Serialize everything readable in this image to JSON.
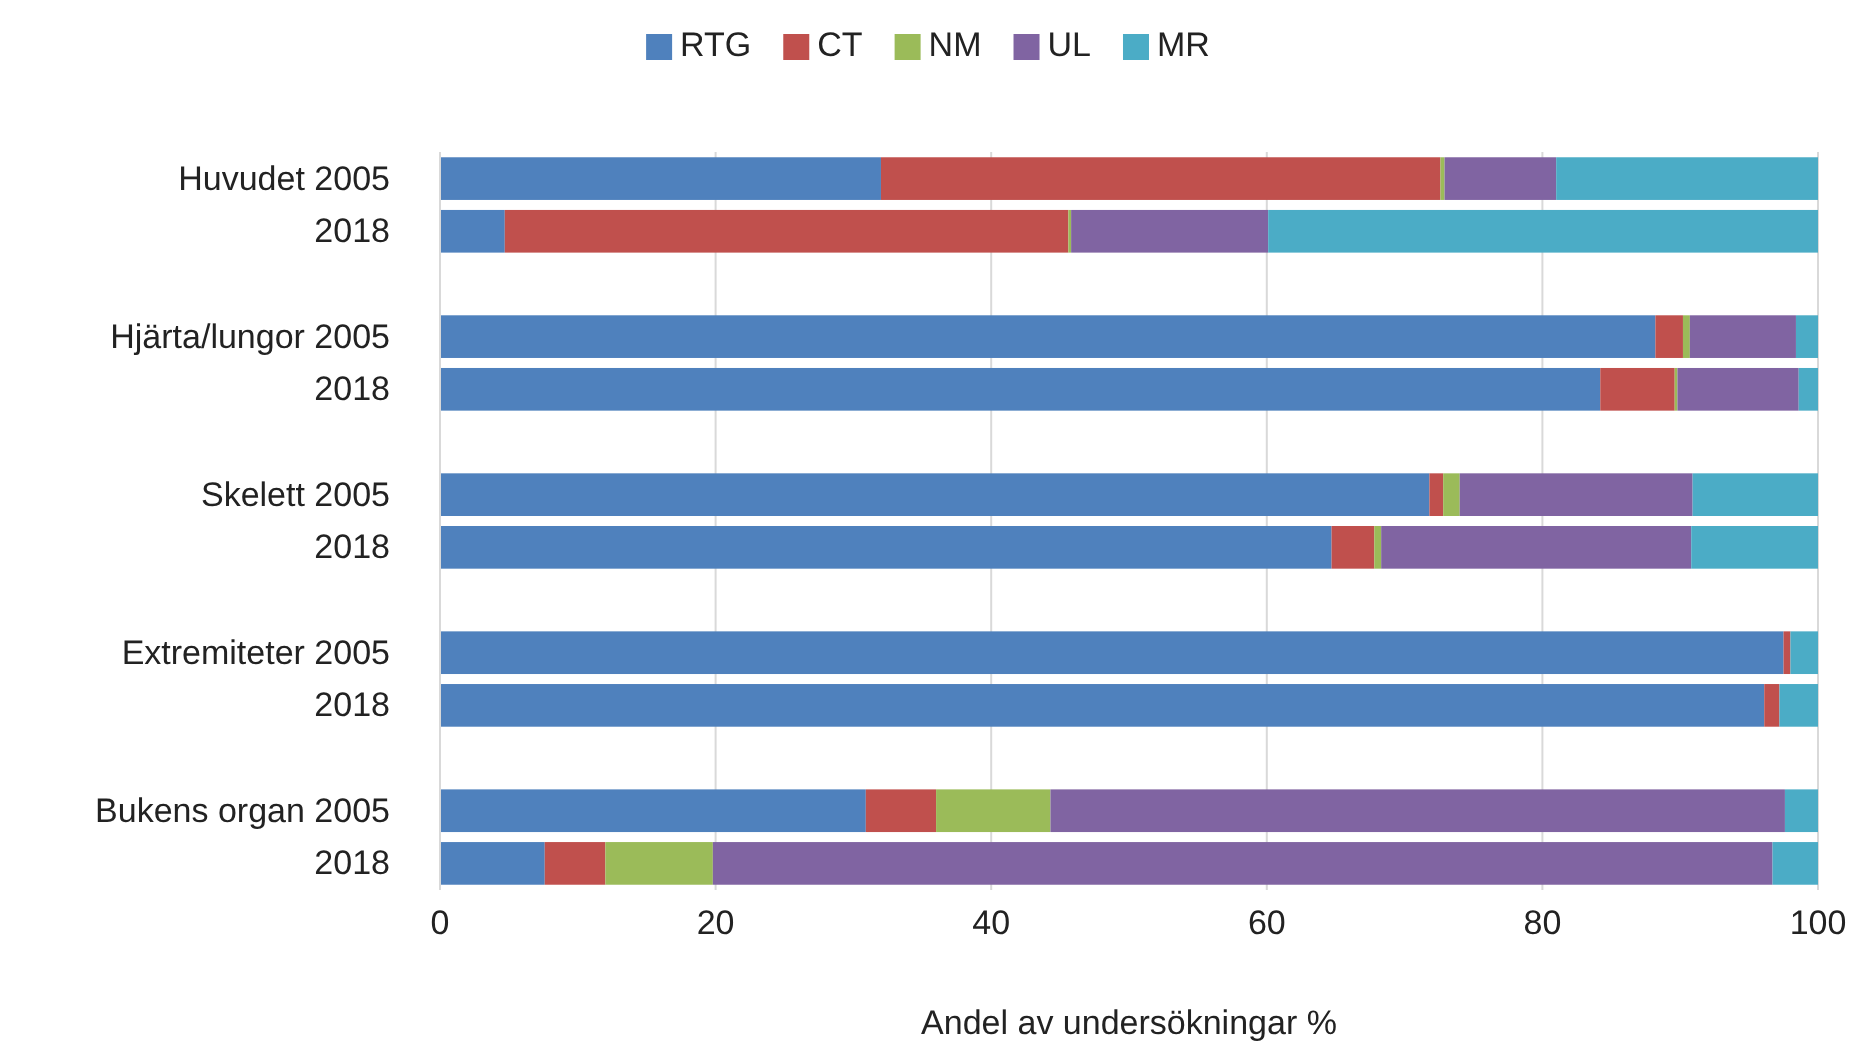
{
  "chart_data": {
    "type": "bar",
    "orientation": "horizontal",
    "stacked": true,
    "xlabel": "Andel av undersökningar %",
    "categories": [
      "Huvudet 2005",
      "2018",
      null,
      "Hjärta/lungor 2005",
      "2018",
      null,
      "Skelett 2005",
      "2018",
      null,
      "Extremiteter 2005",
      "2018",
      null,
      "Bukens organ 2005",
      "2018"
    ],
    "series": [
      {
        "name": "RTG",
        "color": "#4f81bd",
        "values": [
          32.0,
          4.7,
          null,
          88.2,
          84.2,
          null,
          71.8,
          64.7,
          null,
          97.5,
          96.1,
          null,
          30.9,
          7.6
        ]
      },
      {
        "name": "CT",
        "color": "#c0504d",
        "values": [
          40.6,
          40.9,
          null,
          2.0,
          5.4,
          null,
          1.0,
          3.1,
          null,
          0.5,
          1.1,
          null,
          5.1,
          4.4
        ]
      },
      {
        "name": "NM",
        "color": "#9bbb59",
        "values": [
          0.3,
          0.2,
          null,
          0.5,
          0.2,
          null,
          1.2,
          0.5,
          null,
          0,
          0,
          null,
          8.3,
          7.8
        ]
      },
      {
        "name": "UL",
        "color": "#8064a2",
        "values": [
          8.1,
          14.3,
          null,
          7.7,
          8.8,
          null,
          16.9,
          22.5,
          null,
          0,
          0,
          null,
          53.3,
          76.9
        ]
      },
      {
        "name": "MR",
        "color": "#4bacc6",
        "values": [
          19.0,
          39.9,
          null,
          1.6,
          1.4,
          null,
          9.1,
          9.2,
          null,
          2.0,
          2.8,
          null,
          2.4,
          3.3
        ]
      }
    ],
    "xlim": [
      0,
      100
    ],
    "xticks": [
      0,
      20,
      40,
      60,
      80,
      100
    ],
    "grid": "x",
    "legend": "top"
  }
}
